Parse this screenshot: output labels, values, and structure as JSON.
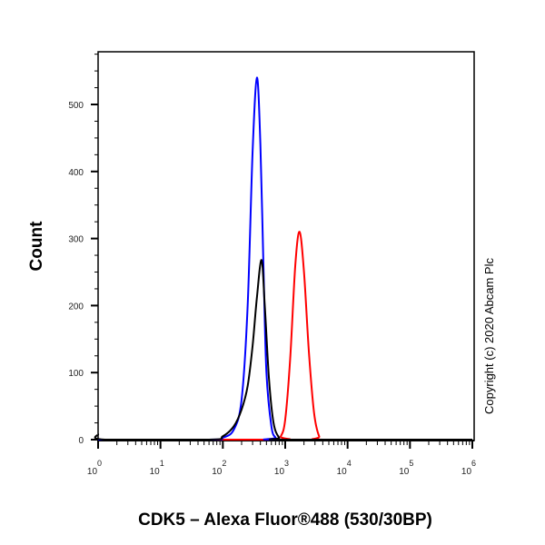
{
  "chart_data": {
    "type": "line",
    "title": "",
    "xlabel": "CDK5 – Alexa Fluor®488 (530/30BP)",
    "ylabel": "Count",
    "x_scale": "log",
    "xlim": [
      1,
      1000000
    ],
    "ylim": [
      0,
      580
    ],
    "x_ticks": [
      {
        "value": 1,
        "base": "10",
        "exp": "0"
      },
      {
        "value": 10,
        "base": "10",
        "exp": "1"
      },
      {
        "value": 100,
        "base": "10",
        "exp": "2"
      },
      {
        "value": 1000,
        "base": "10",
        "exp": "3"
      },
      {
        "value": 10000,
        "base": "10",
        "exp": "4"
      },
      {
        "value": 100000,
        "base": "10",
        "exp": "5"
      },
      {
        "value": 1000000,
        "base": "10",
        "exp": "6"
      }
    ],
    "y_ticks": [
      "0",
      "100",
      "200",
      "300",
      "400",
      "500"
    ],
    "grid": false,
    "annotation": "Copyright (c) 2020 Abcam Plc",
    "series": [
      {
        "color": "#0000ff",
        "points": [
          [
            1,
            0
          ],
          [
            60,
            0
          ],
          [
            100,
            3
          ],
          [
            150,
            15
          ],
          [
            200,
            60
          ],
          [
            250,
            200
          ],
          [
            300,
            430
          ],
          [
            352,
            540
          ],
          [
            400,
            440
          ],
          [
            450,
            250
          ],
          [
            500,
            100
          ],
          [
            600,
            20
          ],
          [
            700,
            3
          ],
          [
            800,
            0
          ],
          [
            1000000,
            0
          ]
        ]
      },
      {
        "color": "#000000",
        "points": [
          [
            1,
            8
          ],
          [
            1.3,
            0
          ],
          [
            60,
            0
          ],
          [
            100,
            5
          ],
          [
            150,
            20
          ],
          [
            200,
            45
          ],
          [
            250,
            80
          ],
          [
            300,
            140
          ],
          [
            350,
            210
          ],
          [
            417,
            268
          ],
          [
            470,
            200
          ],
          [
            550,
            90
          ],
          [
            650,
            25
          ],
          [
            800,
            3
          ],
          [
            1000,
            0
          ],
          [
            1000000,
            0
          ]
        ]
      },
      {
        "color": "#ff0000",
        "points": [
          [
            1,
            0
          ],
          [
            690,
            0
          ],
          [
            850,
            5
          ],
          [
            1000,
            30
          ],
          [
            1200,
            120
          ],
          [
            1450,
            260
          ],
          [
            1700,
            310
          ],
          [
            2000,
            250
          ],
          [
            2400,
            130
          ],
          [
            2900,
            40
          ],
          [
            3500,
            5
          ],
          [
            4300,
            0
          ],
          [
            1000000,
            0
          ]
        ]
      }
    ]
  }
}
